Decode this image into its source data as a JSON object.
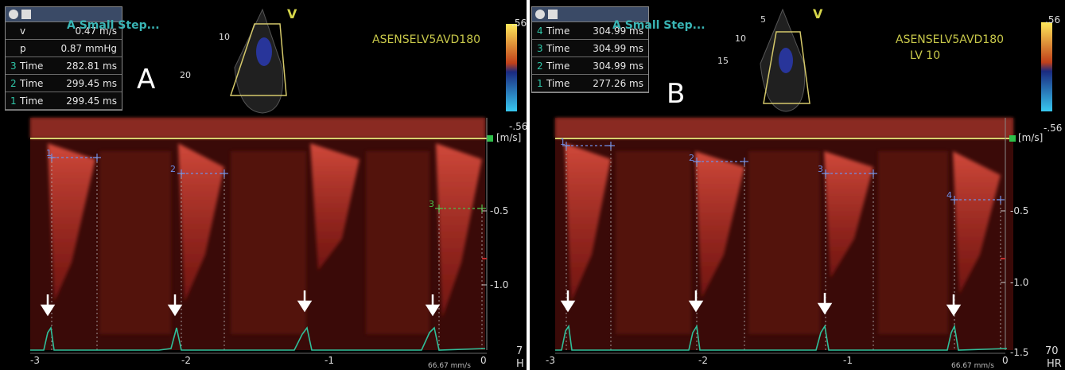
{
  "panel_a": {
    "label": "A",
    "title": "A Small Step...",
    "preset": "ASENSELV5AVD180",
    "scale_top": ".56",
    "scale_bottom": "-.56",
    "v_marker": "V",
    "depth_labels": [
      "10",
      "20"
    ],
    "measurements": [
      {
        "num": "",
        "label": "v",
        "value": "0.47 m/s"
      },
      {
        "num": "",
        "label": "p",
        "value": "0.87 mmHg"
      },
      {
        "num": "3",
        "label": "Time",
        "value": "282.81 ms"
      },
      {
        "num": "2",
        "label": "Time",
        "value": "299.45 ms"
      },
      {
        "num": "1",
        "label": "Time",
        "value": "299.45 ms"
      }
    ],
    "axis_unit": "[m/s]",
    "axis_ticks": [
      "-0.5",
      "-1.0"
    ],
    "time_labels": [
      "-3",
      "-2",
      "-1",
      "0"
    ],
    "hr": "7",
    "hr_unit": "H",
    "sweep": "66.67 mm/s",
    "marker_labels": [
      "1",
      "2",
      "3"
    ]
  },
  "panel_b": {
    "label": "B",
    "title": "A Small Step...",
    "preset": "ASENSELV5AVD180",
    "preset_sub": "LV 10",
    "scale_top": ".56",
    "scale_bottom": "-.56",
    "v_marker": "V",
    "depth_labels": [
      "5",
      "10",
      "15"
    ],
    "measurements": [
      {
        "num": "4",
        "label": "Time",
        "value": "304.99 ms"
      },
      {
        "num": "3",
        "label": "Time",
        "value": "304.99 ms"
      },
      {
        "num": "2",
        "label": "Time",
        "value": "304.99 ms"
      },
      {
        "num": "1",
        "label": "Time",
        "value": "277.26 ms"
      }
    ],
    "axis_unit": "[m/s]",
    "axis_ticks": [
      "-0.5",
      "-1.0",
      "-1.5"
    ],
    "time_labels": [
      "-3",
      "-2",
      "-1",
      "0"
    ],
    "hr": "70",
    "hr_unit": "HR",
    "sweep": "66.67 mm/s",
    "marker_labels": [
      "1",
      "2",
      "3",
      "4"
    ]
  },
  "colors": {
    "doppler": "#c0302a",
    "ecg": "#2fbf9a",
    "caliper": "#6f8fe8",
    "baseline": "#d8d070"
  }
}
